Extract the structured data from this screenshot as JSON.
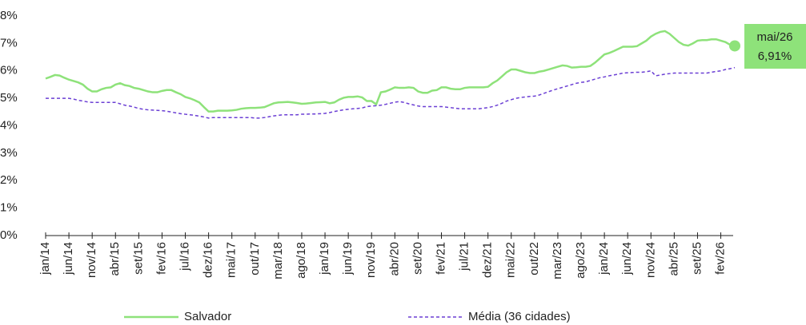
{
  "chart_data": {
    "type": "line",
    "categories": [
      "jan/14",
      null,
      null,
      null,
      null,
      "jun/14",
      null,
      null,
      null,
      null,
      "nov/14",
      null,
      null,
      null,
      null,
      "abr/15",
      null,
      null,
      null,
      null,
      "set/15",
      null,
      null,
      null,
      null,
      "fev/16",
      null,
      null,
      null,
      null,
      "jul/16",
      null,
      null,
      null,
      null,
      "dez/16",
      null,
      null,
      null,
      null,
      "mai/17",
      null,
      null,
      null,
      null,
      "out/17",
      null,
      null,
      null,
      null,
      "mar/18",
      null,
      null,
      null,
      null,
      "ago/18",
      null,
      null,
      null,
      null,
      "jan/19",
      null,
      null,
      null,
      null,
      "jun/19",
      null,
      null,
      null,
      null,
      "nov/19",
      null,
      null,
      null,
      null,
      "abr/20",
      null,
      null,
      null,
      null,
      "set/20",
      null,
      null,
      null,
      null,
      "fev/21",
      null,
      null,
      null,
      null,
      "jul/21",
      null,
      null,
      null,
      null,
      "dez/21",
      null,
      null,
      null,
      null,
      "mai/22",
      null,
      null,
      null,
      null,
      "out/22",
      null,
      null,
      null,
      null,
      "mar/23",
      null,
      null,
      null,
      null,
      "ago/23",
      null,
      null,
      null,
      null,
      "jan/24",
      null,
      null,
      null,
      null,
      "jun/24",
      null,
      null,
      null,
      null,
      "nov/24",
      null,
      null,
      null,
      null,
      "abr/25",
      null,
      null,
      null,
      null,
      "set/25",
      null,
      null,
      null,
      null,
      "fev/26",
      null,
      null,
      null
    ],
    "series": [
      {
        "name": "Salvador",
        "color": "#8ee27a",
        "dashed": false,
        "values": [
          5.72,
          5.78,
          5.85,
          5.83,
          5.75,
          5.68,
          5.63,
          5.58,
          5.5,
          5.35,
          5.25,
          5.25,
          5.33,
          5.38,
          5.4,
          5.5,
          5.55,
          5.48,
          5.45,
          5.38,
          5.35,
          5.3,
          5.25,
          5.22,
          5.22,
          5.27,
          5.3,
          5.3,
          5.22,
          5.15,
          5.05,
          5.0,
          4.93,
          4.85,
          4.68,
          4.52,
          4.52,
          4.55,
          4.55,
          4.55,
          4.56,
          4.58,
          4.62,
          4.64,
          4.65,
          4.65,
          4.66,
          4.68,
          4.75,
          4.82,
          4.85,
          4.86,
          4.87,
          4.85,
          4.83,
          4.8,
          4.81,
          4.83,
          4.85,
          4.86,
          4.87,
          4.82,
          4.85,
          4.95,
          5.02,
          5.05,
          5.05,
          5.07,
          5.03,
          4.9,
          4.9,
          4.78,
          5.22,
          5.25,
          5.32,
          5.4,
          5.38,
          5.38,
          5.4,
          5.38,
          5.25,
          5.2,
          5.2,
          5.28,
          5.3,
          5.4,
          5.4,
          5.35,
          5.33,
          5.33,
          5.38,
          5.4,
          5.4,
          5.4,
          5.4,
          5.42,
          5.55,
          5.65,
          5.8,
          5.95,
          6.05,
          6.05,
          6.0,
          5.95,
          5.92,
          5.92,
          5.97,
          6.0,
          6.05,
          6.1,
          6.15,
          6.2,
          6.18,
          6.12,
          6.13,
          6.15,
          6.15,
          6.18,
          6.3,
          6.45,
          6.6,
          6.65,
          6.72,
          6.8,
          6.88,
          6.88,
          6.88,
          6.9,
          7.0,
          7.1,
          7.25,
          7.35,
          7.42,
          7.45,
          7.35,
          7.2,
          7.05,
          6.95,
          6.92,
          7.0,
          7.1,
          7.12,
          7.12,
          7.15,
          7.15,
          7.1,
          7.05,
          6.95,
          6.91
        ]
      },
      {
        "name": "Média (36 cidades)",
        "color": "#6b3fd4",
        "dashed": true,
        "values": [
          5.0,
          5.0,
          5.0,
          5.0,
          5.0,
          5.0,
          4.97,
          4.93,
          4.9,
          4.87,
          4.85,
          4.85,
          4.85,
          4.85,
          4.85,
          4.85,
          4.8,
          4.75,
          4.72,
          4.68,
          4.63,
          4.6,
          4.58,
          4.57,
          4.56,
          4.55,
          4.53,
          4.5,
          4.47,
          4.44,
          4.42,
          4.4,
          4.38,
          4.35,
          4.32,
          4.28,
          4.3,
          4.3,
          4.3,
          4.3,
          4.3,
          4.3,
          4.3,
          4.3,
          4.3,
          4.28,
          4.28,
          4.3,
          4.33,
          4.36,
          4.38,
          4.4,
          4.4,
          4.4,
          4.4,
          4.42,
          4.42,
          4.43,
          4.43,
          4.44,
          4.45,
          4.48,
          4.52,
          4.55,
          4.58,
          4.6,
          4.62,
          4.63,
          4.65,
          4.7,
          4.72,
          4.73,
          4.75,
          4.78,
          4.82,
          4.86,
          4.88,
          4.85,
          4.8,
          4.76,
          4.72,
          4.7,
          4.7,
          4.7,
          4.7,
          4.7,
          4.68,
          4.66,
          4.64,
          4.62,
          4.62,
          4.62,
          4.62,
          4.62,
          4.64,
          4.66,
          4.7,
          4.75,
          4.82,
          4.9,
          4.95,
          5.0,
          5.03,
          5.05,
          5.07,
          5.08,
          5.12,
          5.18,
          5.24,
          5.3,
          5.35,
          5.4,
          5.45,
          5.5,
          5.55,
          5.58,
          5.6,
          5.65,
          5.7,
          5.75,
          5.78,
          5.82,
          5.85,
          5.88,
          5.92,
          5.93,
          5.94,
          5.95,
          5.95,
          5.97,
          6.0,
          5.82,
          5.85,
          5.88,
          5.9,
          5.92,
          5.92,
          5.92,
          5.92,
          5.92,
          5.92,
          5.92,
          5.92,
          5.95,
          5.98,
          6.0,
          6.05,
          6.08,
          6.12
        ]
      }
    ],
    "ylim": [
      0,
      8
    ],
    "yticks": [
      {
        "value": 0,
        "label": "0%"
      },
      {
        "value": 1,
        "label": "1%"
      },
      {
        "value": 2,
        "label": "2%"
      },
      {
        "value": 3,
        "label": "3%"
      },
      {
        "value": 4,
        "label": "4%"
      },
      {
        "value": 5,
        "label": "5%"
      },
      {
        "value": 6,
        "label": "6%"
      },
      {
        "value": 7,
        "label": "7%"
      },
      {
        "value": 8,
        "label": "8%"
      }
    ],
    "grid": false,
    "legend": "bottom",
    "last_point_annotation": {
      "x_label": "mai/26",
      "value_label": "6,91%",
      "color": "#8ee27a"
    }
  }
}
